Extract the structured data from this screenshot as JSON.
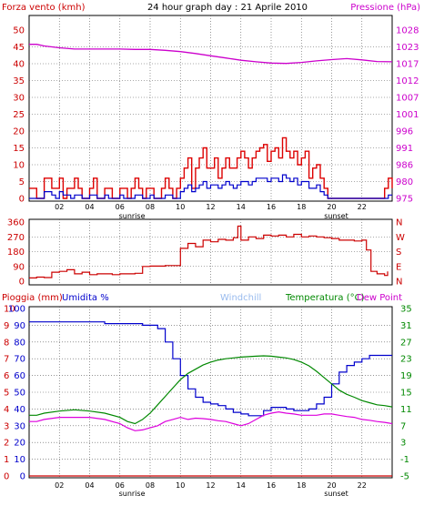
{
  "chart_data": [
    {
      "type": "line",
      "title": "24 hour graph day : 21 Aprile 2010",
      "left_axis_title": "Forza vento (kmh)",
      "right_axis_title": "Pressione (hPa)",
      "left_ticks": [
        "0",
        "5",
        "10",
        "15",
        "20",
        "25",
        "30",
        "35",
        "40",
        "45",
        "50"
      ],
      "right_ticks": [
        "975",
        "980",
        "986",
        "991",
        "996",
        "1001",
        "1007",
        "1012",
        "1017",
        "1023",
        "1028"
      ],
      "ylim_left": [
        0,
        50
      ],
      "ylim_right": [
        975,
        1028
      ],
      "x_ticks": [
        "02",
        "04",
        "06",
        "08",
        "10",
        "12",
        "14",
        "16",
        "18",
        "20",
        "22"
      ],
      "x_range_hours": [
        0,
        24
      ],
      "sunrise_label": "sunrise",
      "sunset_label": "sunset",
      "sunrise_hour": 6.8,
      "sunset_hour": 20.3,
      "colors": {
        "gust": "#dd0000",
        "wind": "#0000cc",
        "pressure": "#cc00cc",
        "left_axis": "#cc0000",
        "right_axis": "#cc00cc"
      },
      "series": [
        {
          "name": "Pressione",
          "x": [
            0,
            0.5,
            1,
            2,
            3,
            4,
            5,
            6,
            7,
            8,
            9,
            10,
            11,
            12,
            13,
            14,
            15,
            16,
            17,
            18,
            19,
            20,
            21,
            22,
            23,
            24
          ],
          "y": [
            1023.5,
            1023.5,
            1023,
            1022.4,
            1022,
            1022,
            1022,
            1022,
            1021.9,
            1021.9,
            1021.6,
            1021.2,
            1020.6,
            1019.9,
            1019.2,
            1018.5,
            1018,
            1017.6,
            1017.5,
            1017.8,
            1018.3,
            1018.7,
            1019,
            1018.6,
            1018.1,
            1018
          ]
        },
        {
          "name": "Raffiche",
          "x": [
            0,
            0.25,
            0.5,
            0.75,
            1,
            1.25,
            1.5,
            1.75,
            2,
            2.25,
            2.5,
            2.75,
            3,
            3.25,
            3.5,
            3.75,
            4,
            4.25,
            4.5,
            4.75,
            5,
            5.25,
            5.5,
            5.75,
            6,
            6.25,
            6.5,
            6.75,
            7,
            7.25,
            7.5,
            7.75,
            8,
            8.25,
            8.5,
            8.75,
            9,
            9.25,
            9.5,
            9.75,
            10,
            10.25,
            10.5,
            10.75,
            11,
            11.25,
            11.5,
            11.75,
            12,
            12.25,
            12.5,
            12.75,
            13,
            13.25,
            13.5,
            13.75,
            14,
            14.25,
            14.5,
            14.75,
            15,
            15.25,
            15.5,
            15.75,
            16,
            16.25,
            16.5,
            16.75,
            17,
            17.25,
            17.5,
            17.75,
            18,
            18.25,
            18.5,
            18.75,
            19,
            19.25,
            19.5,
            19.75,
            20,
            20.25,
            20.5,
            20.75,
            21,
            21.25,
            21.5,
            21.75,
            22,
            22.25,
            22.5,
            22.75,
            23,
            23.25,
            23.5,
            23.75,
            24
          ],
          "y": [
            3,
            3,
            0,
            0,
            6,
            6,
            3,
            3,
            6,
            0,
            3,
            3,
            6,
            3,
            0,
            0,
            3,
            6,
            0,
            0,
            3,
            3,
            0,
            0,
            3,
            3,
            0,
            3,
            6,
            3,
            0,
            3,
            3,
            0,
            0,
            3,
            6,
            3,
            0,
            3,
            6,
            9,
            12,
            3,
            9,
            12,
            15,
            9,
            9,
            12,
            6,
            9,
            12,
            9,
            9,
            12,
            14,
            12,
            9,
            12,
            14,
            15,
            16,
            11,
            14,
            15,
            12,
            18,
            14,
            12,
            14,
            10,
            12,
            14,
            6,
            9,
            10,
            6,
            3,
            0,
            0,
            0,
            0,
            0,
            0,
            0,
            0,
            0,
            0,
            0,
            0,
            0,
            0,
            0,
            3,
            6,
            3
          ]
        },
        {
          "name": "Vento",
          "x": [
            0,
            0.25,
            0.5,
            0.75,
            1,
            1.25,
            1.5,
            1.75,
            2,
            2.25,
            2.5,
            2.75,
            3,
            3.25,
            3.5,
            3.75,
            4,
            4.25,
            4.5,
            4.75,
            5,
            5.25,
            5.5,
            5.75,
            6,
            6.25,
            6.5,
            6.75,
            7,
            7.25,
            7.5,
            7.75,
            8,
            8.25,
            8.5,
            8.75,
            9,
            9.25,
            9.5,
            9.75,
            10,
            10.25,
            10.5,
            10.75,
            11,
            11.25,
            11.5,
            11.75,
            12,
            12.25,
            12.5,
            12.75,
            13,
            13.25,
            13.5,
            13.75,
            14,
            14.25,
            14.5,
            14.75,
            15,
            15.25,
            15.5,
            15.75,
            16,
            16.25,
            16.5,
            16.75,
            17,
            17.25,
            17.5,
            17.75,
            18,
            18.25,
            18.5,
            18.75,
            19,
            19.25,
            19.5,
            19.75,
            20,
            20.25,
            20.5,
            20.75,
            21,
            21.25,
            21.5,
            21.75,
            22,
            22.25,
            22.5,
            22.75,
            23,
            23.25,
            23.5,
            23.75,
            24
          ],
          "y": [
            0,
            0,
            0,
            0,
            2,
            2,
            1,
            0,
            2,
            1,
            1,
            0,
            1,
            1,
            0,
            0,
            1,
            1,
            0,
            0,
            1,
            0,
            0,
            0,
            1,
            0,
            0,
            0,
            1,
            1,
            0,
            0,
            1,
            0,
            0,
            0,
            1,
            1,
            0,
            0,
            2,
            3,
            4,
            2,
            3,
            4,
            5,
            3,
            4,
            4,
            3,
            4,
            5,
            4,
            3,
            4,
            5,
            5,
            4,
            5,
            6,
            6,
            6,
            5,
            6,
            6,
            5,
            7,
            6,
            5,
            6,
            4,
            5,
            5,
            3,
            3,
            4,
            2,
            1,
            0,
            0,
            0,
            0,
            0,
            0,
            0,
            0,
            0,
            0,
            0,
            0,
            0,
            0,
            0,
            0,
            1,
            1
          ]
        }
      ]
    },
    {
      "type": "line",
      "left_ticks": [
        "0",
        "90",
        "180",
        "270",
        "360"
      ],
      "right_ticks": [
        "N",
        "E",
        "S",
        "W",
        "N"
      ],
      "ylim": [
        0,
        360
      ],
      "x_range_hours": [
        0,
        24
      ],
      "colors": {
        "direction": "#cc0000",
        "axis": "#cc0000"
      },
      "series": [
        {
          "name": "Direzione",
          "x": [
            0,
            0.5,
            1,
            1.5,
            2,
            2.5,
            3,
            3.5,
            4,
            4.5,
            5,
            5.5,
            6,
            6.5,
            7,
            7.5,
            8,
            8.5,
            9,
            9.5,
            9.8,
            10,
            10.5,
            11,
            11.5,
            12,
            12.5,
            13,
            13.5,
            13.8,
            14,
            14.5,
            15,
            15.5,
            16,
            16.5,
            17,
            17.5,
            18,
            18.5,
            19,
            19.5,
            20,
            20.5,
            21,
            21.5,
            22,
            22.3,
            22.6,
            23,
            23.5,
            23.7
          ],
          "y": [
            20,
            25,
            22,
            55,
            60,
            70,
            45,
            55,
            40,
            45,
            45,
            40,
            45,
            45,
            48,
            90,
            92,
            92,
            95,
            95,
            95,
            200,
            230,
            210,
            250,
            240,
            255,
            250,
            265,
            335,
            250,
            270,
            260,
            280,
            275,
            280,
            270,
            285,
            270,
            275,
            270,
            265,
            260,
            250,
            250,
            245,
            250,
            190,
            60,
            45,
            35,
            60
          ]
        }
      ]
    },
    {
      "type": "line",
      "left_axis_titles": [
        "Pioggia (mm)",
        "Umidita %"
      ],
      "top_labels": [
        "Windchill",
        "Temperatura (°C)",
        "Dew Point"
      ],
      "left_ticks_outer": [
        "0",
        "1",
        "2",
        "3",
        "4",
        "5",
        "6",
        "7",
        "8",
        "9",
        "10"
      ],
      "left_ticks_inner": [
        "0",
        "10",
        "20",
        "30",
        "40",
        "50",
        "60",
        "70",
        "80",
        "90",
        "100"
      ],
      "right_ticks": [
        "-5",
        "-1",
        "3",
        "7",
        "11",
        "15",
        "19",
        "23",
        "27",
        "31",
        "35"
      ],
      "ylim_humidity": [
        0,
        100
      ],
      "ylim_temperature": [
        -5,
        35
      ],
      "ylim_rain": [
        0,
        10
      ],
      "x_ticks": [
        "02",
        "04",
        "06",
        "08",
        "10",
        "12",
        "14",
        "16",
        "18",
        "20",
        "22"
      ],
      "x_range_hours": [
        0,
        24
      ],
      "sunrise_label": "sunrise",
      "sunset_label": "sunset",
      "sunrise_hour": 6.8,
      "sunset_hour": 20.3,
      "colors": {
        "humidity": "#0000cc",
        "temperature": "#008800",
        "dew_point": "#dd00dd",
        "rain": "#cc0000",
        "windchill_label": "#99bbee",
        "humidity_label": "#0000cc",
        "rain_label": "#cc0000",
        "temperature_label": "#008800",
        "dew_label": "#cc00cc"
      },
      "series": [
        {
          "name": "Umidita",
          "x": [
            0,
            0.5,
            1,
            2,
            3,
            4,
            5,
            6,
            6.5,
            7,
            7.5,
            8,
            8.5,
            9,
            9.5,
            10,
            10.5,
            11,
            11.5,
            12,
            12.5,
            13,
            13.5,
            14,
            14.5,
            15,
            15.5,
            16,
            16.5,
            17,
            17.5,
            18,
            18.5,
            19,
            19.5,
            20,
            20.5,
            21,
            21.5,
            22,
            22.5,
            23,
            23.5,
            24
          ],
          "y": [
            92,
            92,
            92,
            92,
            92,
            92,
            91,
            91,
            91,
            91,
            90,
            90,
            88,
            80,
            70,
            60,
            52,
            47,
            44,
            43,
            42,
            40,
            38,
            37,
            36,
            36,
            39,
            41,
            41,
            40,
            39,
            39,
            40,
            43,
            47,
            55,
            62,
            66,
            68,
            70,
            72,
            72,
            72,
            72
          ]
        },
        {
          "name": "Temperatura",
          "x": [
            0,
            0.5,
            1,
            2,
            3,
            4,
            5,
            6,
            6.5,
            7,
            7.5,
            8,
            8.5,
            9,
            9.5,
            10,
            10.5,
            11,
            11.5,
            12,
            12.5,
            13,
            13.5,
            14,
            14.5,
            15,
            15.5,
            16,
            16.5,
            17,
            17.5,
            18,
            18.5,
            19,
            19.5,
            20,
            20.5,
            21,
            21.5,
            22,
            22.5,
            23,
            23.5,
            24
          ],
          "y": [
            9.5,
            9.5,
            10,
            10.5,
            10.8,
            10.5,
            10,
            9,
            8,
            7.5,
            8.5,
            10,
            12,
            14,
            16,
            18,
            19.5,
            20.5,
            21.5,
            22.2,
            22.7,
            23,
            23.2,
            23.4,
            23.5,
            23.6,
            23.7,
            23.6,
            23.4,
            23.2,
            22.8,
            22.2,
            21.3,
            20,
            18.5,
            17,
            15.5,
            14.5,
            13.8,
            13,
            12.5,
            12,
            11.8,
            11.5
          ]
        },
        {
          "name": "Dew Point",
          "x": [
            0,
            0.5,
            1,
            2,
            3,
            4,
            5,
            6,
            6.5,
            7,
            7.5,
            8,
            8.5,
            9,
            9.5,
            10,
            10.5,
            11,
            11.5,
            12,
            12.5,
            13,
            13.5,
            14,
            14.5,
            15,
            15.5,
            16,
            16.5,
            17,
            17.5,
            18,
            18.5,
            19,
            19.5,
            20,
            20.5,
            21,
            21.5,
            22,
            22.5,
            23,
            23.5,
            24
          ],
          "y": [
            8,
            8,
            8.5,
            9,
            9,
            9,
            8.5,
            7.5,
            6.5,
            5.8,
            6,
            6.5,
            7,
            8,
            8.5,
            9,
            8.5,
            8.8,
            8.7,
            8.5,
            8.2,
            8,
            7.5,
            7,
            7.5,
            8.5,
            9.5,
            10,
            10.3,
            10,
            9.8,
            9.5,
            9.5,
            9.5,
            9.8,
            9.8,
            9.5,
            9.2,
            9,
            8.5,
            8.3,
            8,
            7.8,
            7.5
          ]
        },
        {
          "name": "Pioggia",
          "x": [
            0,
            24
          ],
          "y": [
            0,
            0
          ]
        }
      ]
    }
  ]
}
